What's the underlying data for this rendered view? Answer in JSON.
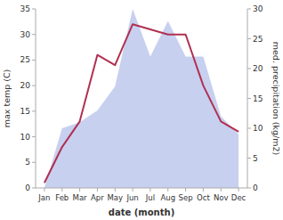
{
  "chart_data": {
    "type": "line",
    "categories": [
      "Jan",
      "Feb",
      "Mar",
      "Apr",
      "May",
      "Jun",
      "Jul",
      "Aug",
      "Sep",
      "Oct",
      "Nov",
      "Dec"
    ],
    "series": [
      {
        "type": "area",
        "axis": "y2",
        "color": "#c8d0f0",
        "values": [
          0,
          10,
          11,
          13,
          17,
          30,
          22,
          28,
          22,
          22,
          12,
          9
        ]
      },
      {
        "type": "line",
        "color": "#b03050",
        "values": [
          1,
          8,
          13,
          26,
          24,
          32,
          31,
          30,
          30,
          20,
          13,
          11
        ]
      }
    ],
    "xlabel": "date (month)",
    "ylabel": "max temp (C)",
    "y2label": "med. precipitation (kg/m2)",
    "ylim": [
      0,
      35
    ],
    "yticks": [
      0,
      5,
      10,
      15,
      20,
      25,
      30,
      35
    ],
    "y2lim": [
      0,
      30
    ],
    "y2ticks": [
      0,
      5,
      10,
      15,
      20,
      25,
      30
    ],
    "grid": false
  }
}
